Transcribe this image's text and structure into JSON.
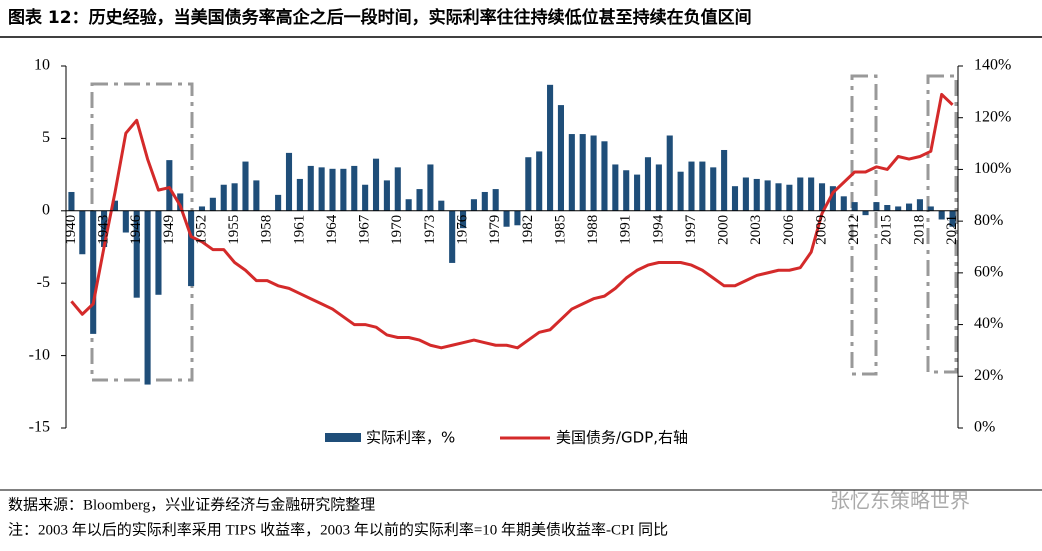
{
  "chart_data": {
    "type": "bar-line",
    "title": "图表 12：历史经验，当美国债务率高企之后一段时间，实际利率往往持续低位甚至持续在负值区间",
    "categories": [
      "1940",
      null,
      null,
      "1943",
      null,
      null,
      "1946",
      null,
      null,
      "1949",
      null,
      null,
      "1952",
      null,
      null,
      "1955",
      null,
      null,
      "1958",
      null,
      null,
      "1961",
      null,
      null,
      "1964",
      null,
      null,
      "1967",
      null,
      null,
      "1970",
      null,
      null,
      "1973",
      null,
      null,
      "1976",
      null,
      null,
      "1979",
      null,
      null,
      "1982",
      null,
      null,
      "1985",
      null,
      null,
      "1988",
      null,
      null,
      "1991",
      null,
      null,
      "1994",
      null,
      null,
      "1997",
      null,
      null,
      "2000",
      null,
      null,
      "2003",
      null,
      null,
      "2006",
      null,
      null,
      "2009",
      null,
      null,
      "2012",
      null,
      null,
      "2015",
      null,
      null,
      "2018",
      null,
      null,
      "2021"
    ],
    "series": [
      {
        "name": "实际利率，%",
        "color": "#1f4e79",
        "values": [
          1.3,
          -3.0,
          -8.5,
          -2.5,
          0.7,
          -1.5,
          -6.0,
          -12.0,
          -5.8,
          3.5,
          1.2,
          -5.2,
          0.3,
          0.9,
          1.8,
          1.9,
          3.4,
          2.1,
          0,
          1.1,
          4.0,
          2.2,
          3.1,
          3.0,
          2.9,
          2.9,
          3.1,
          1.8,
          3.6,
          2.1,
          3.0,
          0.8,
          1.5,
          3.2,
          0.7,
          -3.6,
          -1.2,
          0.8,
          1.3,
          1.5,
          -1.1,
          -1.0,
          3.7,
          4.1,
          8.7,
          7.3,
          5.3,
          5.3,
          5.2,
          4.8,
          3.2,
          2.8,
          2.5,
          3.7,
          3.2,
          5.2,
          2.7,
          3.4,
          3.4,
          3.0,
          4.2,
          1.7,
          2.3,
          2.2,
          2.1,
          1.9,
          1.8,
          2.3,
          2.3,
          1.9,
          1.7,
          1.0,
          0.6,
          -0.3,
          0.6,
          0.4,
          0.3,
          0.5,
          0.8,
          0.3,
          -0.6,
          -1.1
        ]
      },
      {
        "name": "美国债务/GDP,右轴",
        "color": "#d42a2a",
        "axis": "y2",
        "values": [
          49,
          44,
          48,
          70,
          91,
          114,
          119,
          104,
          92,
          93,
          86,
          74,
          72,
          69,
          69,
          64,
          61,
          57,
          57,
          55,
          54,
          52,
          50,
          48,
          46,
          43,
          40,
          40,
          39,
          36,
          35,
          35,
          34,
          32,
          31,
          32,
          33,
          34,
          33,
          32,
          32,
          31,
          34,
          37,
          38,
          42,
          46,
          48,
          50,
          51,
          54,
          58,
          61,
          63,
          64,
          64,
          64,
          63,
          61,
          58,
          55,
          55,
          57,
          59,
          60,
          61,
          61,
          62,
          68,
          83,
          91,
          95,
          99,
          99,
          101,
          100,
          105,
          104,
          105,
          107,
          129,
          125
        ]
      }
    ],
    "ylim": [
      -15,
      10
    ],
    "yticks": [
      -15,
      -10,
      -5,
      0,
      5,
      10
    ],
    "y2lim": [
      0,
      140
    ],
    "y2ticks": [
      {
        "value": 0,
        "label": "0%"
      },
      {
        "value": 20,
        "label": "20%"
      },
      {
        "value": 40,
        "label": "40%"
      },
      {
        "value": 60,
        "label": "60%"
      },
      {
        "value": 80,
        "label": "80%"
      },
      {
        "value": 100,
        "label": "100%"
      },
      {
        "value": 120,
        "label": "120%"
      },
      {
        "value": 140,
        "label": "140%"
      }
    ],
    "source": "数据来源：Bloomberg，兴业证券经济与金融研究院整理",
    "note": "注：2003 年以后的实际利率采用 TIPS 收益率，2003 年以前的实际利率=10 年期美债收益率-CPI 同比",
    "watermark": "张忆东策略世界"
  }
}
